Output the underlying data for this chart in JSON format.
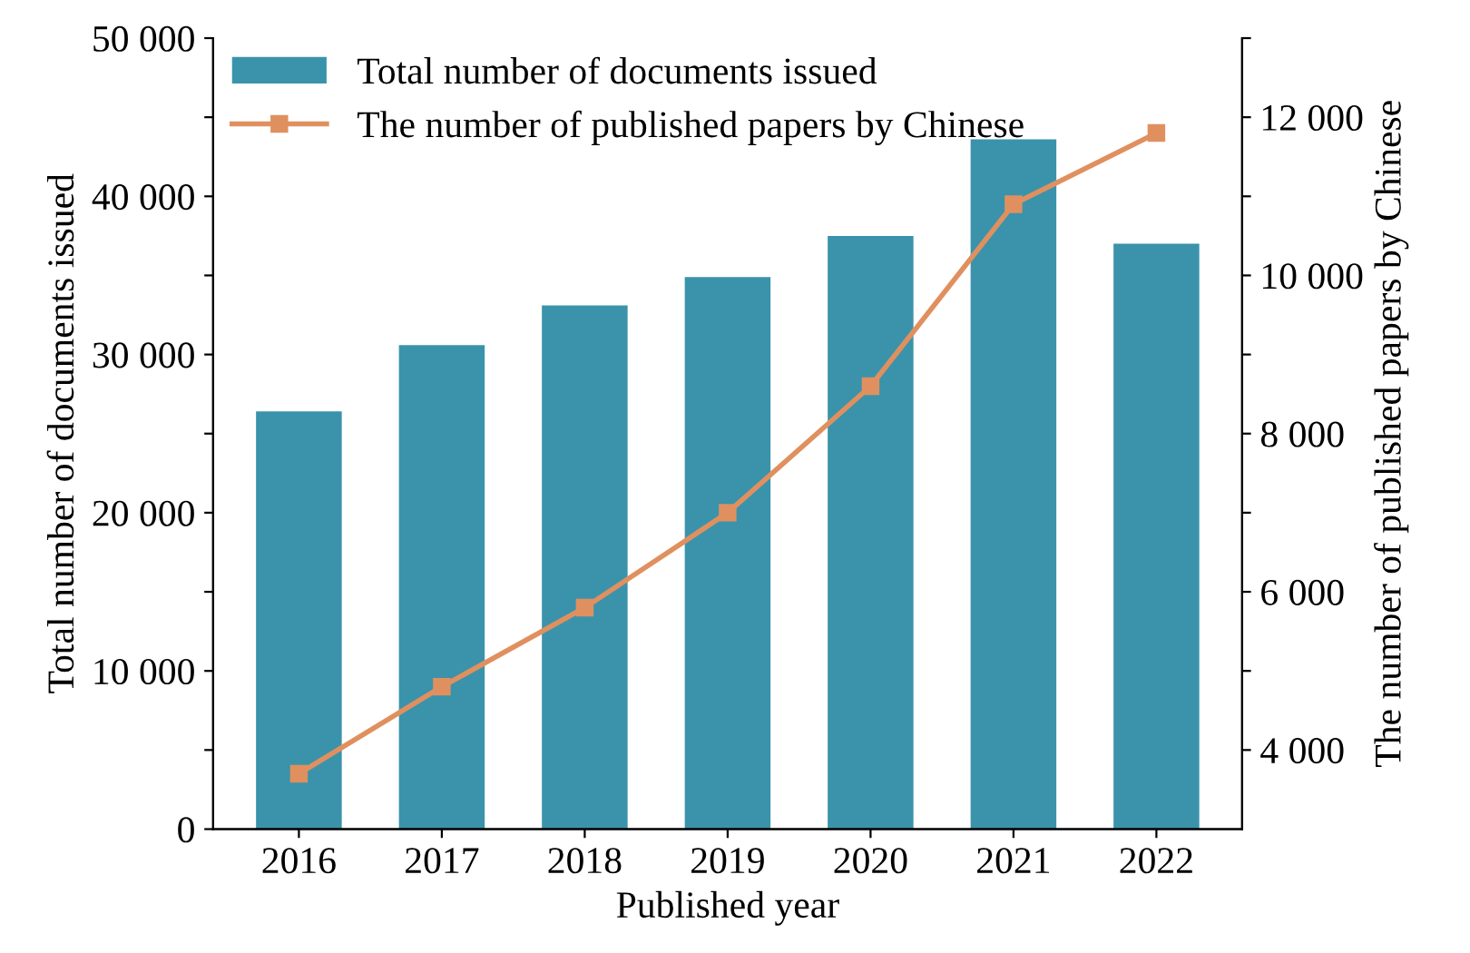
{
  "chart_data": {
    "type": "bar",
    "xlabel": "Published year",
    "ylabel": "Total number of documents issued",
    "y2label": "The number of published papers by Chinese",
    "categories": [
      "2016",
      "2017",
      "2018",
      "2019",
      "2020",
      "2021",
      "2022"
    ],
    "series": [
      {
        "name": "Total number of documents issued",
        "color": "#3a93ab",
        "values": [
          26400,
          30600,
          33100,
          34900,
          37500,
          43600,
          37000
        ]
      },
      {
        "name": "The number of published papers by Chinese",
        "type": "line",
        "axis": "y2",
        "color": "#e0905f",
        "marker": "square",
        "line_style": "solid",
        "values": [
          3700,
          4800,
          5800,
          7000,
          8600,
          10900,
          11800
        ]
      }
    ],
    "ylim": [
      0,
      50000
    ],
    "yticks": [
      0,
      {
        "value": 5000,
        "label": null
      },
      {
        "value": 10000,
        "label": "10 000"
      },
      {
        "value": 15000,
        "label": null
      },
      {
        "value": 20000,
        "label": "20 000"
      },
      {
        "value": 25000,
        "label": null
      },
      {
        "value": 30000,
        "label": "30 000"
      },
      {
        "value": 35000,
        "label": null
      },
      {
        "value": 40000,
        "label": "40 000"
      },
      {
        "value": 45000,
        "label": null
      },
      {
        "value": 50000,
        "label": "50 000"
      }
    ],
    "y2lim": [
      3000,
      13000
    ],
    "y2ticks": [
      {
        "value": 4000,
        "label": "4 000"
      },
      {
        "value": 5000,
        "label": null
      },
      {
        "value": 6000,
        "label": "6 000"
      },
      {
        "value": 7000,
        "label": null
      },
      {
        "value": 8000,
        "label": "8 000"
      },
      {
        "value": 9000,
        "label": null
      },
      {
        "value": 10000,
        "label": "10 000"
      },
      {
        "value": 11000,
        "label": null
      },
      {
        "value": 12000,
        "label": "12 000"
      },
      {
        "value": 13000,
        "label": null
      }
    ],
    "grid": false,
    "legend": "top left"
  }
}
